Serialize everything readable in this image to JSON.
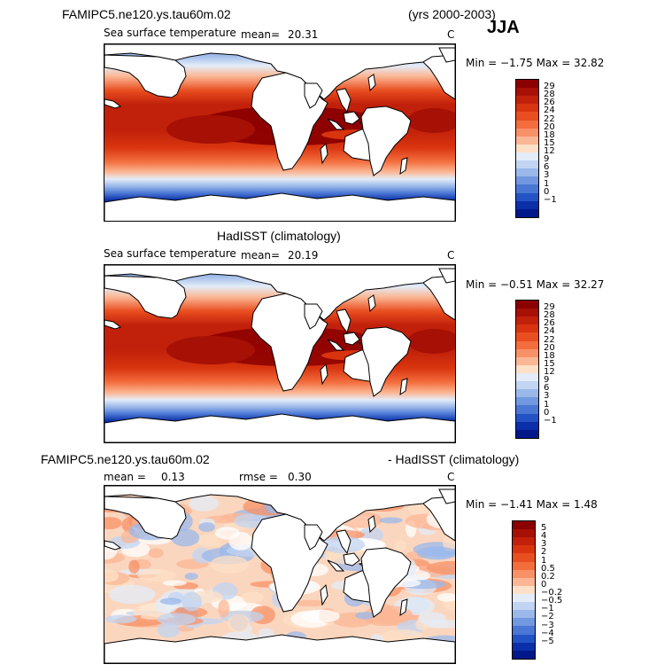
{
  "header": {
    "case_name": "FAMIPC5.ne120.ys.tau60m.02",
    "years": "(yrs 2000-2003)",
    "season": "JJA"
  },
  "panels": [
    {
      "id": "model",
      "variable_label": "Sea surface temperature",
      "stat1_label": "mean=",
      "stat1_value": "20.31",
      "units": "C",
      "min_max": "Min =  −1.75  Max =  32.82",
      "levels": [
        "29",
        "28",
        "26",
        "24",
        "22",
        "20",
        "18",
        "15",
        "12",
        "9",
        "6",
        "3",
        "1",
        "0",
        "−1"
      ],
      "colors": [
        "#8b0000",
        "#a61005",
        "#c1200a",
        "#d8340f",
        "#e94e20",
        "#f36d3d",
        "#f89167",
        "#fbb795",
        "#fde0c7",
        "#e3ecf8",
        "#c1d4f2",
        "#9bb8ea",
        "#7198e0",
        "#4a77d4",
        "#2352c4",
        "#0a2fa8",
        "#00188a"
      ]
    },
    {
      "id": "obs",
      "title": "HadISST (climatology)",
      "variable_label": "Sea surface temperature",
      "stat1_label": "mean=",
      "stat1_value": "20.19",
      "units": "C",
      "min_max": "Min =  −0.51  Max =  32.27",
      "levels": [
        "29",
        "28",
        "26",
        "24",
        "22",
        "20",
        "18",
        "15",
        "12",
        "9",
        "6",
        "3",
        "1",
        "0",
        "−1"
      ],
      "colors": [
        "#8b0000",
        "#a61005",
        "#c1200a",
        "#d8340f",
        "#e94e20",
        "#f36d3d",
        "#f89167",
        "#fbb795",
        "#fde0c7",
        "#e3ecf8",
        "#c1d4f2",
        "#9bb8ea",
        "#7198e0",
        "#4a77d4",
        "#2352c4",
        "#0a2fa8",
        "#00188a"
      ]
    },
    {
      "id": "diff",
      "title_left": "FAMIPC5.ne120.ys.tau60m.02",
      "title_right": "- HadISST (climatology)",
      "stat1_label": "mean =",
      "stat1_value": "0.13",
      "stat2_label": "rmse =",
      "stat2_value": "0.30",
      "units": "C",
      "min_max": "Min =  −1.41  Max =    1.48",
      "levels": [
        "5",
        "4",
        "3",
        "2",
        "1",
        "0.5",
        "0.2",
        "0",
        "−0.2",
        "−0.5",
        "−1",
        "−2",
        "−3",
        "−4",
        "−5"
      ],
      "colors": [
        "#8b0000",
        "#a61005",
        "#c1200a",
        "#d8340f",
        "#e94e20",
        "#f36d3d",
        "#f89167",
        "#fbb795",
        "#fde0c7",
        "#e3ecf8",
        "#c1d4f2",
        "#9bb8ea",
        "#7198e0",
        "#4a77d4",
        "#2352c4",
        "#0a2fa8",
        "#00188a"
      ]
    }
  ]
}
